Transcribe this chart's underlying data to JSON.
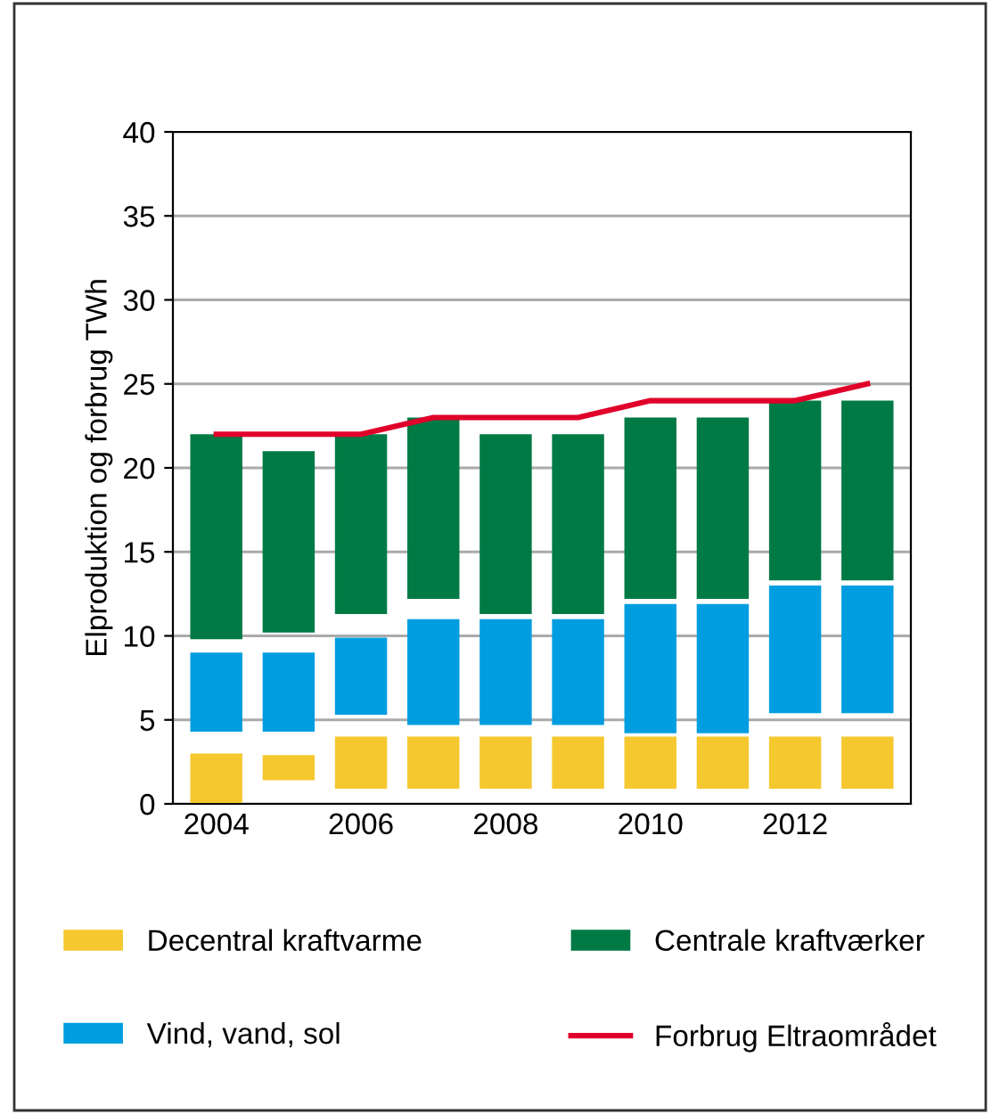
{
  "chart_data": {
    "type": "bar",
    "ylabel": "Elproduktion og forbrug TWh",
    "categories": [
      "2004",
      null,
      "2006",
      null,
      "2008",
      null,
      "2010",
      null,
      "2012",
      null
    ],
    "series": [
      {
        "name": "Decentral kraftvarme",
        "color": "#f5c830",
        "base": [
          0,
          1.4,
          0.9,
          0.9,
          0.9,
          0.9,
          0.9,
          0.9,
          0.9,
          0.9
        ],
        "values": [
          3,
          1.5,
          3.1,
          3.1,
          3.1,
          3.1,
          3.1,
          3.1,
          3.1,
          3.1
        ]
      },
      {
        "name": "Vind, vand, sol",
        "color": "#009ee0",
        "base": [
          4.3,
          4.3,
          5.3,
          4.7,
          4.7,
          4.7,
          4.2,
          4.2,
          5.4,
          5.4
        ],
        "values": [
          4.7,
          4.7,
          4.6,
          6.3,
          6.3,
          6.3,
          7.7,
          7.7,
          7.6,
          7.6
        ]
      },
      {
        "name": "Centrale kraftværker",
        "color": "#007a45",
        "base": [
          9.8,
          10.2,
          11.3,
          12.2,
          11.3,
          11.3,
          12.2,
          12.2,
          13.3,
          13.3
        ],
        "values": [
          12.2,
          10.8,
          10.7,
          10.8,
          10.7,
          10.7,
          10.8,
          10.8,
          10.7,
          10.7
        ]
      },
      {
        "name": "Forbrug Eltraområdet",
        "type": "line",
        "color": "#e0002a",
        "values": [
          22,
          22,
          22,
          23,
          23,
          23,
          24,
          24,
          24,
          25
        ]
      }
    ],
    "ylim": [
      0,
      40
    ],
    "yticks": [
      0,
      5,
      10,
      15,
      20,
      25,
      30,
      35,
      40
    ],
    "grid": "y",
    "legend": "bottom"
  }
}
